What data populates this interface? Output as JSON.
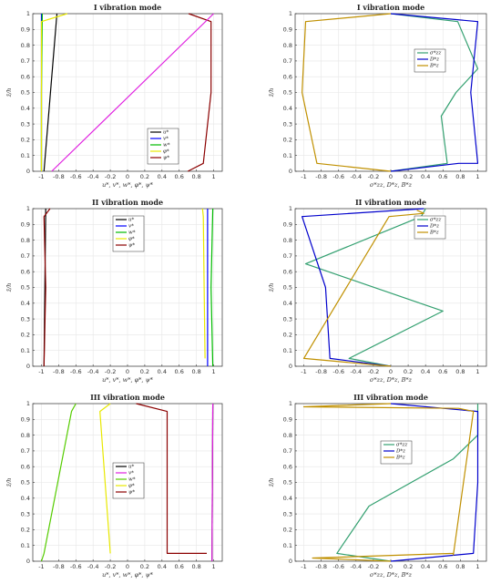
{
  "chart_data": [
    {
      "type": "line",
      "title": "I vibration mode",
      "xlabel": "u*, v*, w*, φ*, ψ*",
      "ylabel": "z̄/h",
      "xlim": [
        -1.1,
        1.1
      ],
      "ylim": [
        0,
        1
      ],
      "xticks": [
        "-1",
        "-0.8",
        "-0.6",
        "-0.4",
        "-0.2",
        "0",
        "0.2",
        "0.4",
        "0.6",
        "0.8",
        "1"
      ],
      "yticks": [
        "0",
        "0.1",
        "0.2",
        "0.3",
        "0.4",
        "0.5",
        "0.6",
        "0.7",
        "0.8",
        "0.9",
        "1"
      ],
      "grid": true,
      "legend_position": "lower-right",
      "series": [
        {
          "name": "u*",
          "color": "#000000",
          "x": [
            -0.97,
            -0.82
          ],
          "y": [
            0,
            1
          ]
        },
        {
          "name": "v*",
          "color": "#0000ff",
          "x": [
            -1.0,
            -1.0
          ],
          "y": [
            0,
            1
          ]
        },
        {
          "name": "w*",
          "color": "#00bb00",
          "x": [
            -1.0,
            -1.0,
            -0.99
          ],
          "y": [
            0,
            0.5,
            1
          ]
        },
        {
          "name": "φ*",
          "color": "#e8e800",
          "x": [
            -1.0,
            -1.0,
            -0.7
          ],
          "y": [
            0,
            0.95,
            1
          ]
        },
        {
          "name": "ψ*",
          "color": "#8b0000",
          "x": [
            0.7,
            0.88,
            0.97,
            0.97,
            0.71
          ],
          "y": [
            0,
            0.05,
            0.5,
            0.95,
            1
          ]
        },
        {
          "name": "",
          "color": "#e020e0",
          "x": [
            -0.88,
            1.0
          ],
          "y": [
            0,
            1
          ]
        }
      ]
    },
    {
      "type": "line",
      "title": "I vibration mode",
      "xlabel": "σ*zz, D*z, B*z",
      "ylabel": "z̄/h",
      "xlim": [
        -1.1,
        1.1
      ],
      "ylim": [
        0,
        1
      ],
      "xticks": [
        "-1",
        "-0.8",
        "-0.6",
        "-0.4",
        "-0.2",
        "0",
        "0.2",
        "0.4",
        "0.6",
        "0.8",
        "1"
      ],
      "yticks": [
        "0",
        "0.1",
        "0.2",
        "0.3",
        "0.4",
        "0.5",
        "0.6",
        "0.7",
        "0.8",
        "0.9",
        "1"
      ],
      "grid": true,
      "legend_position": "top-right",
      "series": [
        {
          "name": "σ*zz",
          "color": "#33a070",
          "x": [
            0,
            0.65,
            0.58,
            0.75,
            1.0,
            0.77,
            0
          ],
          "y": [
            0,
            0.05,
            0.35,
            0.5,
            0.65,
            0.95,
            1
          ]
        },
        {
          "name": "D*z",
          "color": "#0000cc",
          "x": [
            0,
            0.78,
            1.0,
            0.92,
            1.0,
            0.0
          ],
          "y": [
            0,
            0.05,
            0.05,
            0.5,
            0.95,
            1
          ]
        },
        {
          "name": "B*z",
          "color": "#c09000",
          "x": [
            0,
            -0.85,
            -1.02,
            -0.98,
            0.0
          ],
          "y": [
            0,
            0.05,
            0.5,
            0.95,
            1
          ]
        }
      ]
    },
    {
      "type": "line",
      "title": "II vibration mode",
      "xlabel": "u*, v*, w*, φ*, ψ*",
      "ylabel": "z̄/h",
      "xlim": [
        -1.1,
        1.1
      ],
      "ylim": [
        0,
        1
      ],
      "xticks": [
        "-1",
        "-0.8",
        "-0.6",
        "-0.4",
        "-0.2",
        "0",
        "0.2",
        "0.4",
        "0.6",
        "0.8",
        "1"
      ],
      "yticks": [
        "0",
        "0.1",
        "0.2",
        "0.3",
        "0.4",
        "0.5",
        "0.6",
        "0.7",
        "0.8",
        "0.9",
        "1"
      ],
      "grid": true,
      "legend_position": "top-center",
      "series": [
        {
          "name": "u*",
          "color": "#000000",
          "x": [
            -0.97,
            -0.95
          ],
          "y": [
            0,
            1
          ]
        },
        {
          "name": "v*",
          "color": "#0000ff",
          "x": [
            0.93,
            0.93
          ],
          "y": [
            0,
            1
          ]
        },
        {
          "name": "w*",
          "color": "#00bb00",
          "x": [
            0.99,
            0.97,
            0.99
          ],
          "y": [
            0,
            0.5,
            1
          ]
        },
        {
          "name": "φ*",
          "color": "#e8e800",
          "x": [
            0.9,
            0.89,
            0.88,
            0.87
          ],
          "y": [
            0.05,
            0.5,
            0.95,
            1
          ]
        },
        {
          "name": "ψ*",
          "color": "#8b0000",
          "x": [
            -0.97,
            -0.95,
            -0.97,
            -0.9
          ],
          "y": [
            0,
            0.5,
            0.95,
            1
          ]
        }
      ]
    },
    {
      "type": "line",
      "title": "II vibration mode",
      "xlabel": "σ*zz, D*z, B*z",
      "ylabel": "z̄/h",
      "xlim": [
        -1.1,
        1.1
      ],
      "ylim": [
        0,
        1
      ],
      "xticks": [
        "-1",
        "-0.8",
        "-0.6",
        "-0.4",
        "-0.2",
        "0",
        "0.2",
        "0.4",
        "0.6",
        "0.8",
        "1"
      ],
      "yticks": [
        "0",
        "0.1",
        "0.2",
        "0.3",
        "0.4",
        "0.5",
        "0.6",
        "0.7",
        "0.8",
        "0.9",
        "1"
      ],
      "grid": true,
      "legend_position": "top-right",
      "series": [
        {
          "name": "σ*zz",
          "color": "#33a070",
          "x": [
            0,
            -0.48,
            0.6,
            -0.98,
            0.35,
            0.4
          ],
          "y": [
            0,
            0.05,
            0.35,
            0.65,
            0.95,
            1
          ]
        },
        {
          "name": "D*z",
          "color": "#0000cc",
          "x": [
            0,
            -0.7,
            -0.75,
            -1.02,
            0.38
          ],
          "y": [
            0,
            0.05,
            0.5,
            0.95,
            1
          ]
        },
        {
          "name": "B*z",
          "color": "#c09000",
          "x": [
            0,
            -1.0,
            -0.02,
            0.38,
            0.3
          ],
          "y": [
            0,
            0.05,
            0.95,
            0.97,
            0.99
          ]
        }
      ]
    },
    {
      "type": "line",
      "title": "III vibration mode",
      "xlabel": "u*, v*, w*, φ*, ψ*",
      "ylabel": "z̄/h",
      "xlim": [
        -1.1,
        1.1
      ],
      "ylim": [
        0,
        1
      ],
      "xticks": [
        "-1",
        "-0.8",
        "-0.6",
        "-0.4",
        "-0.2",
        "0",
        "0.2",
        "0.4",
        "0.6",
        "0.8",
        "1"
      ],
      "yticks": [
        "0",
        "0.1",
        "0.2",
        "0.3",
        "0.4",
        "0.5",
        "0.6",
        "0.7",
        "0.8",
        "0.9",
        "1"
      ],
      "grid": true,
      "legend_position": "center",
      "series": [
        {
          "name": "u*",
          "color": "#000000",
          "x": [
            0.98,
            0.99
          ],
          "y": [
            0,
            1
          ]
        },
        {
          "name": "v*",
          "color": "#e020e0",
          "x": [
            0.98,
            0.99
          ],
          "y": [
            0,
            1
          ]
        },
        {
          "name": "w*",
          "color": "#55cc00",
          "x": [
            -1.0,
            -0.97,
            -0.65,
            -0.6
          ],
          "y": [
            0,
            0.05,
            0.95,
            1
          ]
        },
        {
          "name": "φ*",
          "color": "#e8e800",
          "x": [
            -0.2,
            -0.32,
            -0.2
          ],
          "y": [
            0.05,
            0.95,
            1
          ]
        },
        {
          "name": "ψ*",
          "color": "#8b0000",
          "x": [
            0.92,
            0.46,
            0.46,
            0.1
          ],
          "y": [
            0.05,
            0.05,
            0.95,
            1
          ]
        }
      ]
    },
    {
      "type": "line",
      "title": "III vibration mode",
      "xlabel": "σ*zz, D*z, B*z",
      "ylabel": "z̄/h",
      "xlim": [
        -1.1,
        1.1
      ],
      "ylim": [
        0,
        1
      ],
      "xticks": [
        "-1",
        "-0.8",
        "-0.6",
        "-0.4",
        "-0.2",
        "0",
        "0.2",
        "0.4",
        "0.6",
        "0.8",
        "1"
      ],
      "yticks": [
        "0",
        "0.1",
        "0.2",
        "0.3",
        "0.4",
        "0.5",
        "0.6",
        "0.7",
        "0.8",
        "0.9",
        "1"
      ],
      "grid": true,
      "legend_position": "upper-center",
      "series": [
        {
          "name": "σ*zz",
          "color": "#33a070",
          "x": [
            0,
            -0.62,
            -0.25,
            0.72,
            1.0,
            1.0
          ],
          "y": [
            0,
            0.05,
            0.35,
            0.65,
            0.8,
            1
          ]
        },
        {
          "name": "D*z",
          "color": "#0000cc",
          "x": [
            0,
            0.95,
            1.0,
            1.0,
            0.0
          ],
          "y": [
            0,
            0.05,
            0.5,
            0.95,
            1
          ]
        },
        {
          "name": "B*z",
          "color": "#c09000",
          "x": [
            0,
            -0.9,
            0.72,
            0.72,
            0.95,
            0.78,
            -1.0,
            0.0
          ],
          "y": [
            0,
            0.02,
            0.05,
            0.04,
            0.95,
            0.97,
            0.98,
            1
          ]
        }
      ]
    }
  ]
}
